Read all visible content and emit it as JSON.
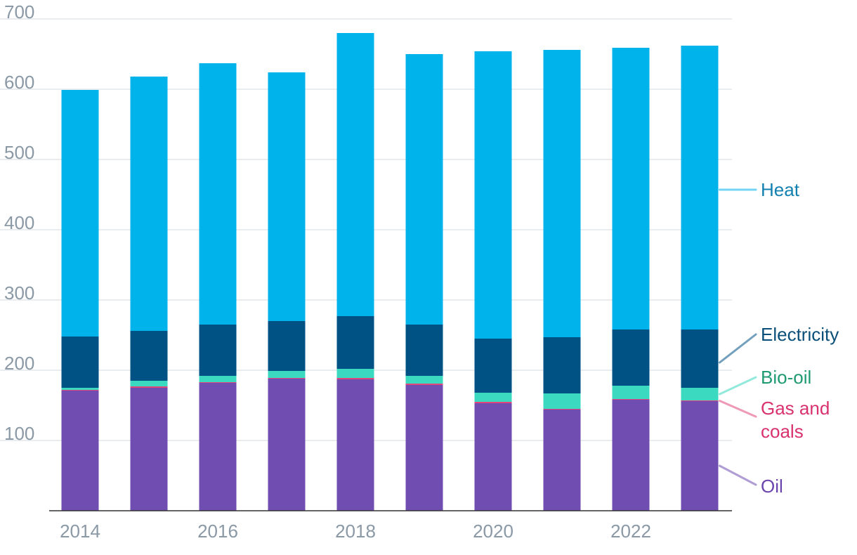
{
  "chart_data": {
    "type": "bar",
    "stacked": true,
    "categories": [
      "2014",
      "2015",
      "2016",
      "2017",
      "2018",
      "2019",
      "2020",
      "2021",
      "2022",
      "2023"
    ],
    "x_tick_labels": [
      "2014",
      "2016",
      "2018",
      "2020",
      "2022"
    ],
    "y_ticks": [
      100,
      200,
      300,
      400,
      500,
      600,
      700
    ],
    "ylim": [
      0,
      700
    ],
    "grid": true,
    "legend_position": "right, inline labels beside the last bar",
    "series": [
      {
        "name": "Oil",
        "color": "#704db0",
        "label_color": "#6a45ad",
        "values": [
          171,
          175,
          182,
          188,
          187,
          179,
          153,
          144,
          158,
          156
        ]
      },
      {
        "name": "Gas and coals",
        "color": "#e0457b",
        "label_color": "#d9326f",
        "values": [
          1,
          2,
          1,
          1,
          2,
          2,
          2,
          1,
          1,
          1
        ]
      },
      {
        "name": "Bio-oil",
        "color": "#3ad9c0",
        "label_color": "#1f9a72",
        "values": [
          3,
          8,
          9,
          10,
          13,
          11,
          13,
          22,
          19,
          18
        ]
      },
      {
        "name": "Electricity",
        "color": "#005285",
        "label_color": "#0a4f7a",
        "values": [
          73,
          71,
          73,
          71,
          75,
          73,
          77,
          80,
          80,
          83
        ]
      },
      {
        "name": "Heat",
        "color": "#00b3eb",
        "label_color": "#1380b0",
        "values": [
          351,
          362,
          372,
          354,
          403,
          385,
          409,
          409,
          401,
          404
        ]
      }
    ]
  }
}
